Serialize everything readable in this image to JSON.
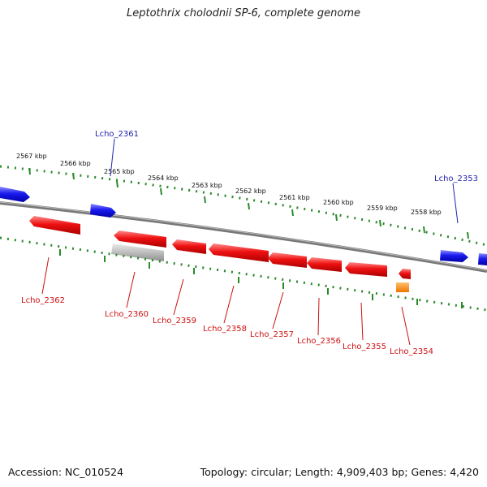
{
  "title": "Leptothrix cholodnii SP-6, complete genome",
  "footer": {
    "accession": "Accession: NC_010524",
    "summary": "Topology: circular; Length: 4,909,403 bp; Genes: 4,420"
  },
  "colors": {
    "forward_gene": "#1a1aee",
    "reverse_gene": "#ee1111",
    "pseudo_gene": "#b8b8b8",
    "rna_gene": "#ff8800",
    "backbone": "#777777",
    "ruler": "#2a8a2a",
    "forward_label": "#2222aa",
    "reverse_label": "#cc1111"
  },
  "ruler_labels": [
    "2567 kbp",
    "2566 kbp",
    "2565 kbp",
    "2564 kbp",
    "2563 kbp",
    "2562 kbp",
    "2561 kbp",
    "2560 kbp",
    "2559 kbp",
    "2558 kbp"
  ],
  "gene_labels": {
    "forward": [
      "Lcho_2361",
      "Lcho_2353"
    ],
    "reverse": [
      "Lcho_2362",
      "Lcho_2360",
      "Lcho_2359",
      "Lcho_2358",
      "Lcho_2357",
      "Lcho_2356",
      "Lcho_2355",
      "Lcho_2354"
    ]
  }
}
